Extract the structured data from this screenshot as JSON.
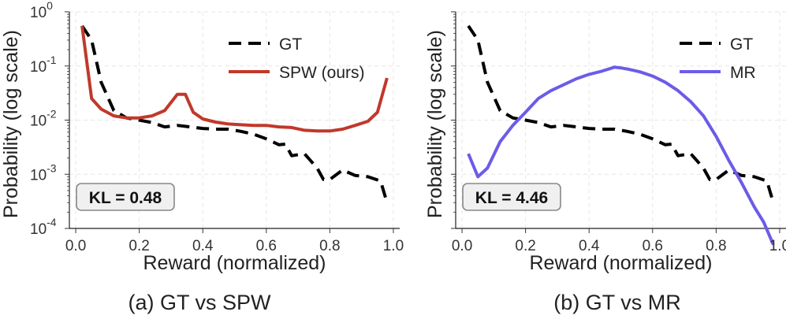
{
  "chart_data": [
    {
      "type": "line",
      "caption": "(a) GT vs SPW",
      "xlabel": "Reward (normalized)",
      "ylabel": "Probability (log scale)",
      "xlim": [
        -0.02,
        1.02
      ],
      "ylim": [
        0.0001,
        1
      ],
      "yscale": "log",
      "grid": true,
      "legend_position": "top-right",
      "xticks": [
        "0.0",
        "0.2",
        "0.4",
        "0.6",
        "0.8",
        "1.0"
      ],
      "yticks": [
        "10^0",
        "10^-1",
        "10^-2",
        "10^-3",
        "10^-4"
      ],
      "annotation": "KL = 0.48",
      "series": [
        {
          "name": "GT",
          "style": "dashed",
          "color": "#000000",
          "x": [
            0.02,
            0.05,
            0.08,
            0.12,
            0.16,
            0.2,
            0.24,
            0.28,
            0.32,
            0.36,
            0.4,
            0.44,
            0.48,
            0.52,
            0.56,
            0.6,
            0.64,
            0.66,
            0.68,
            0.72,
            0.76,
            0.78,
            0.8,
            0.84,
            0.88,
            0.92,
            0.96,
            0.98
          ],
          "values": [
            0.55,
            0.3,
            0.05,
            0.015,
            0.011,
            0.01,
            0.009,
            0.0075,
            0.008,
            0.0075,
            0.007,
            0.0068,
            0.0068,
            0.0062,
            0.0055,
            0.0045,
            0.0035,
            0.0036,
            0.0022,
            0.0024,
            0.0013,
            0.0008,
            0.0008,
            0.0012,
            0.00095,
            0.0009,
            0.00075,
            0.0003
          ]
        },
        {
          "name": "SPW (ours)",
          "style": "solid",
          "color": "#c0392b",
          "x": [
            0.02,
            0.05,
            0.08,
            0.12,
            0.16,
            0.2,
            0.24,
            0.28,
            0.32,
            0.345,
            0.37,
            0.4,
            0.44,
            0.48,
            0.52,
            0.56,
            0.6,
            0.64,
            0.68,
            0.72,
            0.76,
            0.8,
            0.84,
            0.88,
            0.92,
            0.95,
            0.98
          ],
          "values": [
            0.55,
            0.025,
            0.016,
            0.012,
            0.011,
            0.011,
            0.012,
            0.015,
            0.03,
            0.03,
            0.014,
            0.0105,
            0.0092,
            0.0085,
            0.0082,
            0.008,
            0.008,
            0.0075,
            0.0073,
            0.0065,
            0.0063,
            0.0063,
            0.0068,
            0.008,
            0.0095,
            0.014,
            0.06
          ]
        }
      ]
    },
    {
      "type": "line",
      "caption": "(b) GT vs MR",
      "xlabel": "Reward (normalized)",
      "ylabel": "Probability (log scale)",
      "xlim": [
        -0.02,
        1.02
      ],
      "ylim": [
        0.0001,
        1
      ],
      "yscale": "log",
      "grid": true,
      "legend_position": "top-right",
      "xticks": [
        "0.0",
        "0.2",
        "0.4",
        "0.6",
        "0.8",
        "1.0"
      ],
      "annotation": "KL = 4.46",
      "series": [
        {
          "name": "GT",
          "style": "dashed",
          "color": "#000000",
          "x": [
            0.02,
            0.05,
            0.08,
            0.12,
            0.16,
            0.2,
            0.24,
            0.28,
            0.32,
            0.36,
            0.4,
            0.44,
            0.48,
            0.52,
            0.56,
            0.6,
            0.64,
            0.66,
            0.68,
            0.72,
            0.76,
            0.78,
            0.8,
            0.84,
            0.88,
            0.92,
            0.96,
            0.98
          ],
          "values": [
            0.55,
            0.3,
            0.05,
            0.015,
            0.011,
            0.01,
            0.009,
            0.0075,
            0.008,
            0.0075,
            0.007,
            0.0068,
            0.0068,
            0.0062,
            0.0055,
            0.0045,
            0.0035,
            0.0036,
            0.0022,
            0.0024,
            0.0013,
            0.0008,
            0.0008,
            0.0012,
            0.00095,
            0.0009,
            0.00075,
            0.0003
          ]
        },
        {
          "name": "MR",
          "style": "solid",
          "color": "#6c5ce7",
          "x": [
            0.02,
            0.05,
            0.08,
            0.12,
            0.16,
            0.2,
            0.24,
            0.28,
            0.32,
            0.36,
            0.4,
            0.44,
            0.48,
            0.5,
            0.52,
            0.56,
            0.6,
            0.64,
            0.68,
            0.72,
            0.76,
            0.8,
            0.84,
            0.88,
            0.92,
            0.95,
            0.98
          ],
          "values": [
            0.0024,
            0.0009,
            0.0013,
            0.004,
            0.008,
            0.014,
            0.025,
            0.035,
            0.045,
            0.058,
            0.07,
            0.08,
            0.095,
            0.092,
            0.088,
            0.078,
            0.065,
            0.05,
            0.035,
            0.022,
            0.012,
            0.005,
            0.0018,
            0.0007,
            0.00025,
            0.00013,
            5e-05
          ]
        }
      ]
    }
  ]
}
